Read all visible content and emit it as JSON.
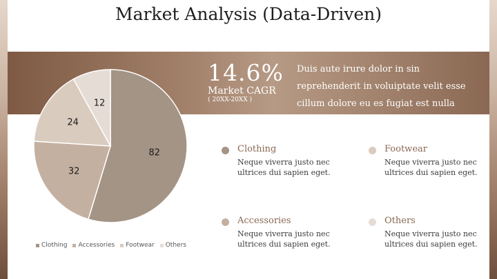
{
  "title": "Market Analysis (Data-Driven)",
  "cagr": {
    "value": "14.6%",
    "label": "Market CAGR",
    "period": "( 20XX-20XX )"
  },
  "band_text": "Duis aute irure dolor in sin reprehenderit in voluiptate velit esse cillum dolore eu es fugiat est nulla pariatur. Excepteur sintoc.",
  "colors": {
    "Clothing": "#a49485",
    "Accessories": "#c4b0a1",
    "Footwear": "#d9cbbd",
    "Others": "#e6dcd6"
  },
  "segments": [
    {
      "name": "Clothing",
      "description": "Neque viverra justo nec ultrices dui sapien eget."
    },
    {
      "name": "Footwear",
      "description": "Neque viverra justo nec ultrices dui sapien eget."
    },
    {
      "name": "Accessories",
      "description": "Neque viverra justo nec ultrices dui sapien eget."
    },
    {
      "name": "Others",
      "description": "Neque viverra justo nec ultrices dui sapien eget."
    }
  ],
  "chart_data": {
    "type": "pie",
    "categories": [
      "Clothing",
      "Accessories",
      "Footwear",
      "Others"
    ],
    "values": [
      82,
      32,
      24,
      12
    ],
    "data_labels": [
      "82",
      "32",
      "24",
      "12"
    ],
    "legend": "bottom",
    "start_angle": "top, clockwise"
  }
}
